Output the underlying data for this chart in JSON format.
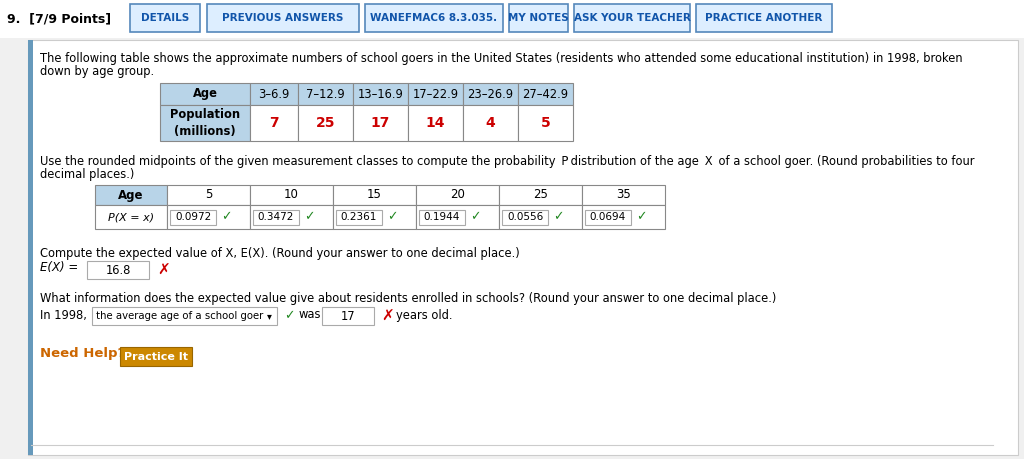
{
  "title_question": "9.  [7/9 Points]",
  "nav_buttons": [
    "DETAILS",
    "PREVIOUS ANSWERS",
    "WANEFMAC6 8.3.035.",
    "MY NOTES",
    "ASK YOUR TEACHER",
    "PRACTICE ANOTHER"
  ],
  "nav_btn_x": [
    130,
    207,
    365,
    509,
    574,
    696,
    838
  ],
  "nav_btn_w": [
    70,
    152,
    138,
    59,
    116,
    136,
    152
  ],
  "table1_headers": [
    "Age",
    "3–6.9",
    "7–12.9",
    "13–16.9",
    "17–22.9",
    "23–26.9",
    "27–42.9"
  ],
  "table1_col_widths": [
    90,
    48,
    55,
    55,
    55,
    55,
    55
  ],
  "table1_row_label": "Population\n(millions)",
  "table1_values": [
    "7",
    "25",
    "17",
    "14",
    "4",
    "5"
  ],
  "table1_values_color": "#cc0000",
  "table2_ages": [
    "5",
    "10",
    "15",
    "20",
    "25",
    "35"
  ],
  "table2_probs": [
    "0.0972",
    "0.3472",
    "0.2361",
    "0.1944",
    "0.0556",
    "0.0694"
  ],
  "table2_col_widths": [
    72,
    83,
    83,
    83,
    83,
    83,
    83
  ],
  "ex_value": "16.8",
  "was_value": "17",
  "dropdown_text": "the average age of a school goer",
  "bg_color": "#f0f0f0",
  "content_bg": "#ffffff",
  "header_bg": "#b8d4e8",
  "table_border": "#888888",
  "nav_bg": "#ddeeff",
  "nav_border": "#5588bb",
  "nav_text": "#1155aa",
  "correct_color": "#228822",
  "wrong_color": "#cc0000",
  "need_help_color": "#cc6600",
  "practice_btn_bg": "#cc8800",
  "practice_btn_text": "#ffffff",
  "left_border_color": "#6699bb"
}
